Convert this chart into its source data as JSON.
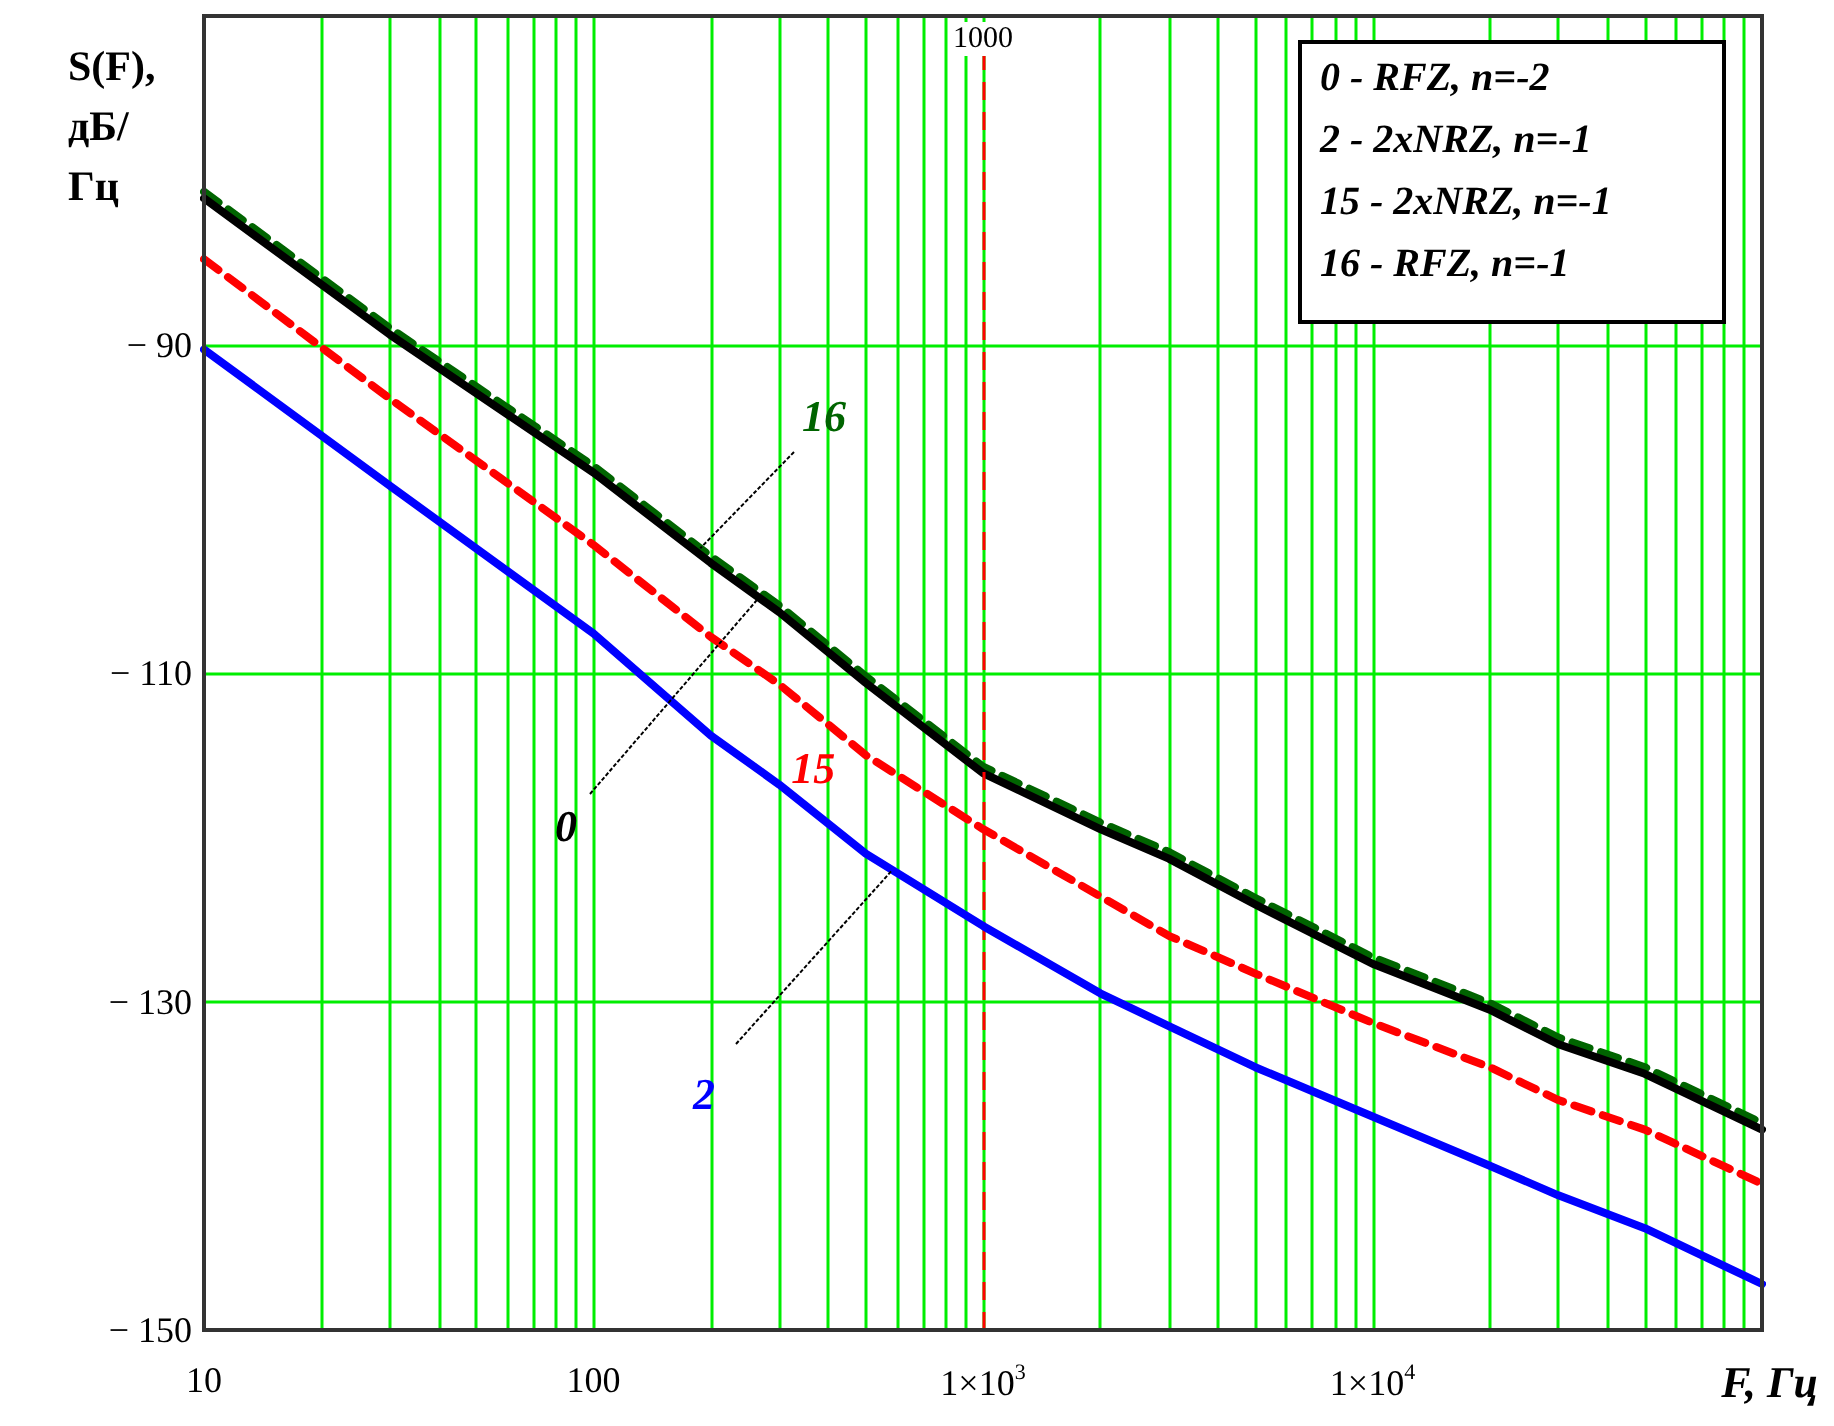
{
  "chart_data": {
    "type": "line",
    "xlabel": "F, Гц",
    "ylabel": "S(F), дБ/Гц",
    "log": "x",
    "grid": true,
    "legend": false,
    "xlim": [
      10,
      100000
    ],
    "xticks": [
      10,
      {
        "value": 20,
        "label": null
      },
      {
        "value": 30,
        "label": null
      },
      {
        "value": 40,
        "label": null
      },
      {
        "value": 50,
        "label": null
      },
      {
        "value": 60,
        "label": null
      },
      {
        "value": 70,
        "label": null
      },
      {
        "value": 80,
        "label": null
      },
      {
        "value": 90,
        "label": null
      },
      100,
      {
        "value": 200,
        "label": null
      },
      {
        "value": 300,
        "label": null
      },
      {
        "value": 400,
        "label": null
      },
      {
        "value": 500,
        "label": null
      },
      {
        "value": 600,
        "label": null
      },
      {
        "value": 700,
        "label": null
      },
      {
        "value": 800,
        "label": null
      },
      {
        "value": 900,
        "label": null
      },
      {
        "value": 1000,
        "label": "1×10$^{3}$"
      },
      {
        "value": 2000,
        "label": null
      },
      {
        "value": 3000,
        "label": null
      },
      {
        "value": 4000,
        "label": null
      },
      {
        "value": 5000,
        "label": null
      },
      {
        "value": 6000,
        "label": null
      },
      {
        "value": 7000,
        "label": null
      },
      {
        "value": 8000,
        "label": null
      },
      {
        "value": 9000,
        "label": null
      },
      {
        "value": 10000,
        "label": "1×10$^{4}$"
      },
      {
        "value": 20000,
        "label": null
      },
      {
        "value": 30000,
        "label": null
      },
      {
        "value": 40000,
        "label": null
      },
      {
        "value": 50000,
        "label": null
      },
      {
        "value": 60000,
        "label": null
      },
      {
        "value": 70000,
        "label": null
      },
      {
        "value": 80000,
        "label": null
      },
      {
        "value": 90000,
        "label": null
      },
      {
        "value": 100000,
        "label": null
      }
    ],
    "ylim": [
      -150,
      -70
    ],
    "yticks": [
      {
        "value": -90,
        "label": "− 90"
      },
      {
        "value": -110,
        "label": "− 110"
      },
      {
        "value": -130,
        "label": "− 130"
      },
      {
        "value": -150,
        "label": "− 150"
      }
    ],
    "x": [
      10,
      30,
      100,
      200,
      300,
      500,
      1000,
      2000,
      3000,
      5000,
      10000,
      20000,
      30000,
      50000,
      100000
    ],
    "series": [
      {
        "name": "16",
        "color": "#006400",
        "line_style": "dashed",
        "values": [
          -80.7,
          -89.0,
          -97.4,
          -102.9,
          -105.9,
          -110.2,
          -115.7,
          -119.1,
          -120.9,
          -123.7,
          -127.3,
          -130.1,
          -132.2,
          -134.0,
          -137.4
        ]
      },
      {
        "name": "0",
        "color": "#000000",
        "line_style": "solid",
        "values": [
          -81.1,
          -89.4,
          -97.8,
          -103.3,
          -106.3,
          -110.6,
          -116.1,
          -119.5,
          -121.3,
          -124.1,
          -127.7,
          -130.5,
          -132.6,
          -134.4,
          -137.8
        ]
      },
      {
        "name": "15",
        "color": "#ff0000",
        "line_style": "dashed",
        "values": [
          -84.8,
          -93.3,
          -102.2,
          -107.8,
          -110.7,
          -115.0,
          -119.5,
          -123.6,
          -126.0,
          -128.3,
          -131.3,
          -134.0,
          -136.0,
          -137.8,
          -141.1
        ]
      },
      {
        "name": "2",
        "color": "#0000ff",
        "line_style": "solid",
        "values": [
          -90.3,
          -98.6,
          -107.6,
          -113.8,
          -116.8,
          -121.0,
          -125.4,
          -129.5,
          -131.5,
          -134.0,
          -137.0,
          -140.0,
          -141.8,
          -143.8,
          -147.2
        ]
      }
    ],
    "ref_lines": [
      {
        "axis": "x",
        "value": 1000,
        "label": "1000",
        "color": "#ff0000",
        "line_style": "dashed"
      }
    ],
    "annotations": [
      "0 - RFZ, n=-2",
      "2 - 2xNRZ, n=-1",
      "15 - 2xNRZ, n=-1",
      "16 - RFZ, n=-1"
    ]
  }
}
